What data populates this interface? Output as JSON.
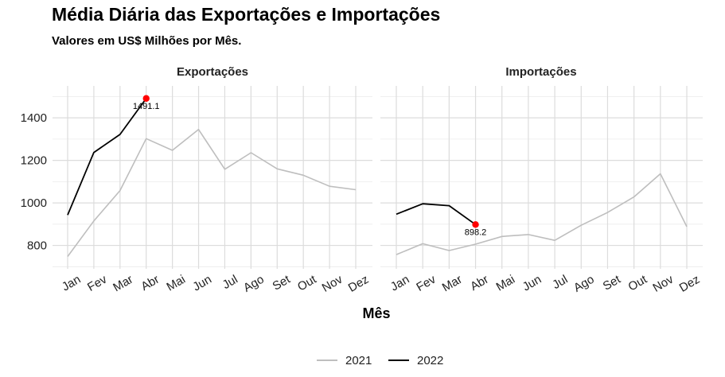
{
  "chart_data": {
    "type": "line",
    "title": "Média Diária das Exportações e Importações",
    "subtitle": "Valores em US$ Milhões por Mês.",
    "xlabel": "Mês",
    "ylabel": "",
    "categories": [
      "Jan",
      "Fev",
      "Mar",
      "Abr",
      "Mai",
      "Jun",
      "Jul",
      "Ago",
      "Set",
      "Out",
      "Nov",
      "Dez"
    ],
    "y_ticks": [
      800,
      1000,
      1200,
      1400
    ],
    "ylim": [
      690,
      1550
    ],
    "grid": true,
    "legend_position": "bottom",
    "colors": {
      "2021": "#bebebe",
      "2022": "#000000",
      "highlight": "#ff0000"
    },
    "facets": [
      {
        "name": "Exportações",
        "series": [
          {
            "name": "2021",
            "values": [
              748,
              915,
              1058,
              1302,
              1247,
              1345,
              1158,
              1236,
              1160,
              1130,
              1078,
              1062
            ]
          },
          {
            "name": "2022",
            "values": [
              943,
              1237,
              1322,
              1491.1
            ]
          }
        ],
        "highlight": {
          "category": "Abr",
          "value": 1491.1,
          "label": "1491.1"
        }
      },
      {
        "name": "Importações",
        "series": [
          {
            "name": "2021",
            "values": [
              757,
              808,
              776,
              806,
              842,
              851,
              824,
              895,
              955,
              1028,
              1137,
              888
            ]
          },
          {
            "name": "2022",
            "values": [
              947,
              996,
              987,
              898.2
            ]
          }
        ],
        "highlight": {
          "category": "Abr",
          "value": 898.2,
          "label": "898.2"
        }
      }
    ]
  }
}
